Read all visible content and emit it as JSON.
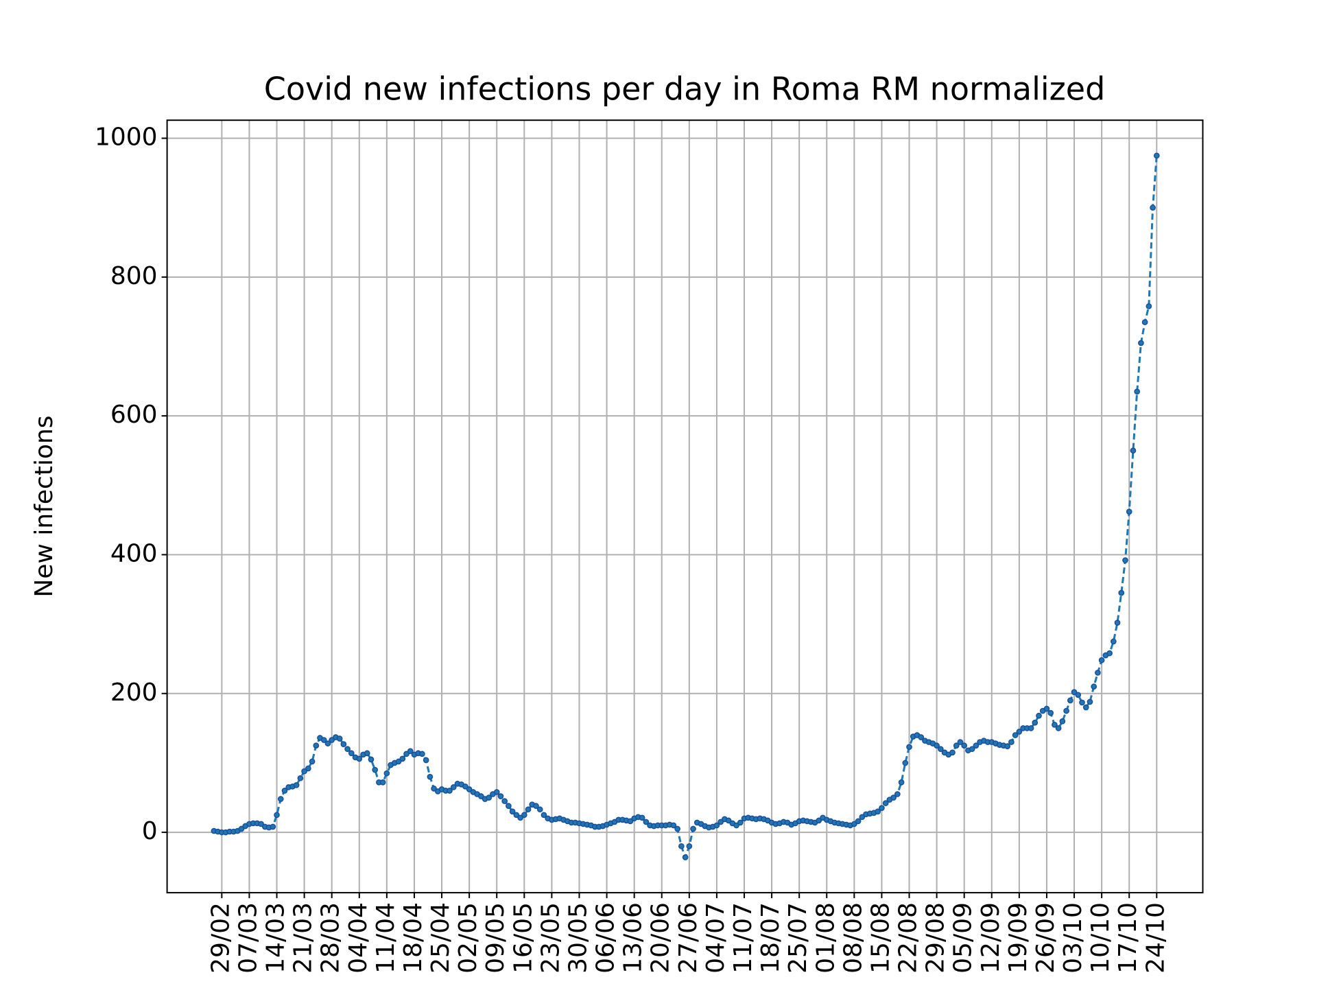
{
  "chart_data": {
    "type": "line",
    "title": "Covid new infections per day in Roma RM normalized",
    "ylabel": "New infections",
    "color": "#1f77b4",
    "marker_edge": "#1a4f9c",
    "grid": true,
    "ylim": [
      -87,
      1026
    ],
    "yticks": [
      0,
      200,
      400,
      600,
      800,
      1000
    ],
    "categories": [
      null,
      null,
      "29/02",
      null,
      null,
      null,
      null,
      null,
      null,
      "07/03",
      null,
      null,
      null,
      null,
      null,
      null,
      "14/03",
      null,
      null,
      null,
      null,
      null,
      null,
      "21/03",
      null,
      null,
      null,
      null,
      null,
      null,
      "28/03",
      null,
      null,
      null,
      null,
      null,
      null,
      "04/04",
      null,
      null,
      null,
      null,
      null,
      null,
      "11/04",
      null,
      null,
      null,
      null,
      null,
      null,
      "18/04",
      null,
      null,
      null,
      null,
      null,
      null,
      "25/04",
      null,
      null,
      null,
      null,
      null,
      null,
      "02/05",
      null,
      null,
      null,
      null,
      null,
      null,
      "09/05",
      null,
      null,
      null,
      null,
      null,
      null,
      "16/05",
      null,
      null,
      null,
      null,
      null,
      null,
      "23/05",
      null,
      null,
      null,
      null,
      null,
      null,
      "30/05",
      null,
      null,
      null,
      null,
      null,
      null,
      "06/06",
      null,
      null,
      null,
      null,
      null,
      null,
      "13/06",
      null,
      null,
      null,
      null,
      null,
      null,
      "20/06",
      null,
      null,
      null,
      null,
      null,
      null,
      "27/06",
      null,
      null,
      null,
      null,
      null,
      null,
      "04/07",
      null,
      null,
      null,
      null,
      null,
      null,
      "11/07",
      null,
      null,
      null,
      null,
      null,
      null,
      "18/07",
      null,
      null,
      null,
      null,
      null,
      null,
      "25/07",
      null,
      null,
      null,
      null,
      null,
      null,
      "01/08",
      null,
      null,
      null,
      null,
      null,
      null,
      "08/08",
      null,
      null,
      null,
      null,
      null,
      null,
      "15/08",
      null,
      null,
      null,
      null,
      null,
      null,
      "22/08",
      null,
      null,
      null,
      null,
      null,
      null,
      "29/08",
      null,
      null,
      null,
      null,
      null,
      null,
      "05/09",
      null,
      null,
      null,
      null,
      null,
      null,
      "12/09",
      null,
      null,
      null,
      null,
      null,
      null,
      "19/09",
      null,
      null,
      null,
      null,
      null,
      null,
      "26/09",
      null,
      null,
      null,
      null,
      null,
      null,
      "03/10",
      null,
      null,
      null,
      null,
      null,
      null,
      "10/10",
      null,
      null,
      null,
      null,
      null,
      null,
      "17/10",
      null,
      null,
      null,
      null,
      null,
      null,
      "24/10"
    ],
    "values": [
      2,
      1,
      0,
      0,
      1,
      1,
      2,
      5,
      9,
      12,
      13,
      13,
      12,
      8,
      7,
      8,
      25,
      48,
      60,
      65,
      66,
      68,
      78,
      88,
      92,
      102,
      125,
      136,
      133,
      128,
      133,
      137,
      135,
      127,
      120,
      114,
      108,
      106,
      112,
      114,
      105,
      90,
      72,
      72,
      85,
      97,
      100,
      102,
      106,
      113,
      117,
      112,
      114,
      113,
      104,
      80,
      63,
      59,
      62,
      60,
      60,
      65,
      70,
      69,
      66,
      62,
      58,
      55,
      52,
      48,
      50,
      55,
      58,
      52,
      45,
      38,
      30,
      25,
      21,
      25,
      33,
      40,
      38,
      33,
      25,
      20,
      18,
      19,
      20,
      18,
      16,
      14,
      14,
      13,
      12,
      11,
      10,
      8,
      8,
      9,
      11,
      13,
      15,
      18,
      18,
      17,
      16,
      20,
      22,
      21,
      15,
      10,
      9,
      10,
      10,
      10,
      11,
      10,
      5,
      -20,
      -36,
      -20,
      5,
      14,
      12,
      9,
      7,
      8,
      10,
      15,
      19,
      17,
      13,
      10,
      14,
      20,
      21,
      20,
      19,
      20,
      19,
      17,
      14,
      12,
      13,
      15,
      14,
      11,
      13,
      16,
      17,
      16,
      15,
      14,
      17,
      21,
      18,
      16,
      14,
      13,
      12,
      11,
      10,
      12,
      16,
      22,
      26,
      27,
      28,
      30,
      35,
      42,
      47,
      50,
      55,
      72,
      100,
      123,
      138,
      140,
      137,
      132,
      130,
      128,
      125,
      120,
      115,
      112,
      115,
      125,
      130,
      125,
      118,
      120,
      125,
      130,
      132,
      130,
      130,
      128,
      126,
      125,
      124,
      130,
      140,
      145,
      150,
      150,
      150,
      158,
      168,
      175,
      178,
      172,
      155,
      150,
      160,
      175,
      190,
      202,
      198,
      187,
      180,
      188,
      210,
      230,
      248,
      255,
      258,
      275,
      302,
      345,
      392,
      462,
      550,
      635,
      705,
      735,
      758,
      900,
      975
    ]
  }
}
